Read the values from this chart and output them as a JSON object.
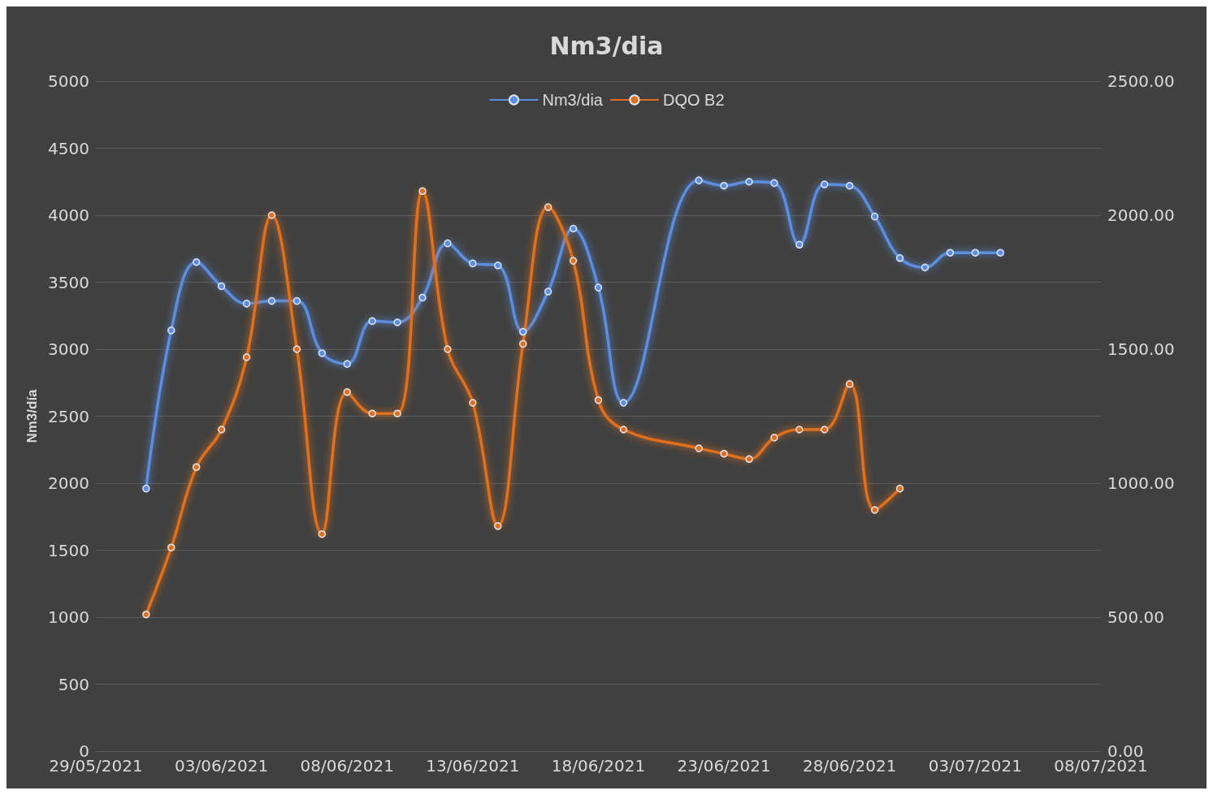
{
  "chart_data": {
    "type": "line",
    "title": "Nm3/dia",
    "ylabel": "Nm3/día",
    "xlim": [
      "2021-05-29",
      "2021-07-08"
    ],
    "xticks": [
      {
        "value": "2021-05-29",
        "label": "29/05/2021"
      },
      {
        "value": "2021-06-03",
        "label": "03/06/2021"
      },
      {
        "value": "2021-06-08",
        "label": "08/06/2021"
      },
      {
        "value": "2021-06-13",
        "label": "13/06/2021"
      },
      {
        "value": "2021-06-18",
        "label": "18/06/2021"
      },
      {
        "value": "2021-06-23",
        "label": "23/06/2021"
      },
      {
        "value": "2021-06-28",
        "label": "28/06/2021"
      },
      {
        "value": "2021-07-03",
        "label": "03/07/2021"
      },
      {
        "value": "2021-07-08",
        "label": "08/07/2021"
      }
    ],
    "ylim": [
      0,
      5000
    ],
    "yticks": [
      0,
      500,
      1000,
      1500,
      2000,
      2500,
      3000,
      3500,
      4000,
      4500,
      5000
    ],
    "y2lim": [
      0,
      2500
    ],
    "y2ticks": [
      {
        "value": 0,
        "label": "0.00"
      },
      {
        "value": 500,
        "label": "500.00"
      },
      {
        "value": 1000,
        "label": "1000.00"
      },
      {
        "value": 1500,
        "label": "1500.00"
      },
      {
        "value": 2000,
        "label": "2000.00"
      },
      {
        "value": 2500,
        "label": "2500.00"
      }
    ],
    "grid": "y",
    "legend": "top",
    "marker": "circle",
    "line_style": "solid",
    "series": [
      {
        "name": "Nm3/dia",
        "color": "#5b8ee0",
        "x": [
          "2021-05-31",
          "2021-06-01",
          "2021-06-02",
          "2021-06-03",
          "2021-06-04",
          "2021-06-05",
          "2021-06-06",
          "2021-06-07",
          "2021-06-08",
          "2021-06-09",
          "2021-06-10",
          "2021-06-11",
          "2021-06-12",
          "2021-06-13",
          "2021-06-14",
          "2021-06-15",
          "2021-06-16",
          "2021-06-17",
          "2021-06-18",
          "2021-06-19",
          "2021-06-22",
          "2021-06-23",
          "2021-06-24",
          "2021-06-25",
          "2021-06-26",
          "2021-06-27",
          "2021-06-28",
          "2021-06-29",
          "2021-06-30",
          "2021-07-01",
          "2021-07-02",
          "2021-07-03",
          "2021-07-04"
        ],
        "values": [
          1960,
          3140,
          3650,
          3470,
          3340,
          3360,
          3360,
          2970,
          2890,
          3210,
          3200,
          3385,
          3790,
          3640,
          3625,
          3130,
          3430,
          3900,
          3460,
          2600,
          4260,
          4220,
          4250,
          4240,
          3780,
          4230,
          4220,
          3990,
          3680,
          3610,
          3720,
          3720,
          3720
        ]
      },
      {
        "name": "DQO B2",
        "color": "#e0701e",
        "axis": "y2",
        "x": [
          "2021-05-31",
          "2021-06-01",
          "2021-06-02",
          "2021-06-03",
          "2021-06-04",
          "2021-06-05",
          "2021-06-06",
          "2021-06-07",
          "2021-06-08",
          "2021-06-09",
          "2021-06-10",
          "2021-06-11",
          "2021-06-12",
          "2021-06-13",
          "2021-06-14",
          "2021-06-15",
          "2021-06-16",
          "2021-06-17",
          "2021-06-18",
          "2021-06-19",
          "2021-06-22",
          "2021-06-23",
          "2021-06-24",
          "2021-06-25",
          "2021-06-26",
          "2021-06-27",
          "2021-06-28",
          "2021-06-29",
          "2021-06-30"
        ],
        "values": [
          510,
          760,
          1060,
          1200,
          1470,
          2000,
          1500,
          810,
          1340,
          1260,
          1260,
          2090,
          1500,
          1300,
          840,
          1520,
          2030,
          1830,
          1310,
          1200,
          1130,
          1110,
          1090,
          1170,
          1200,
          1200,
          1370,
          900,
          980
        ]
      }
    ]
  }
}
